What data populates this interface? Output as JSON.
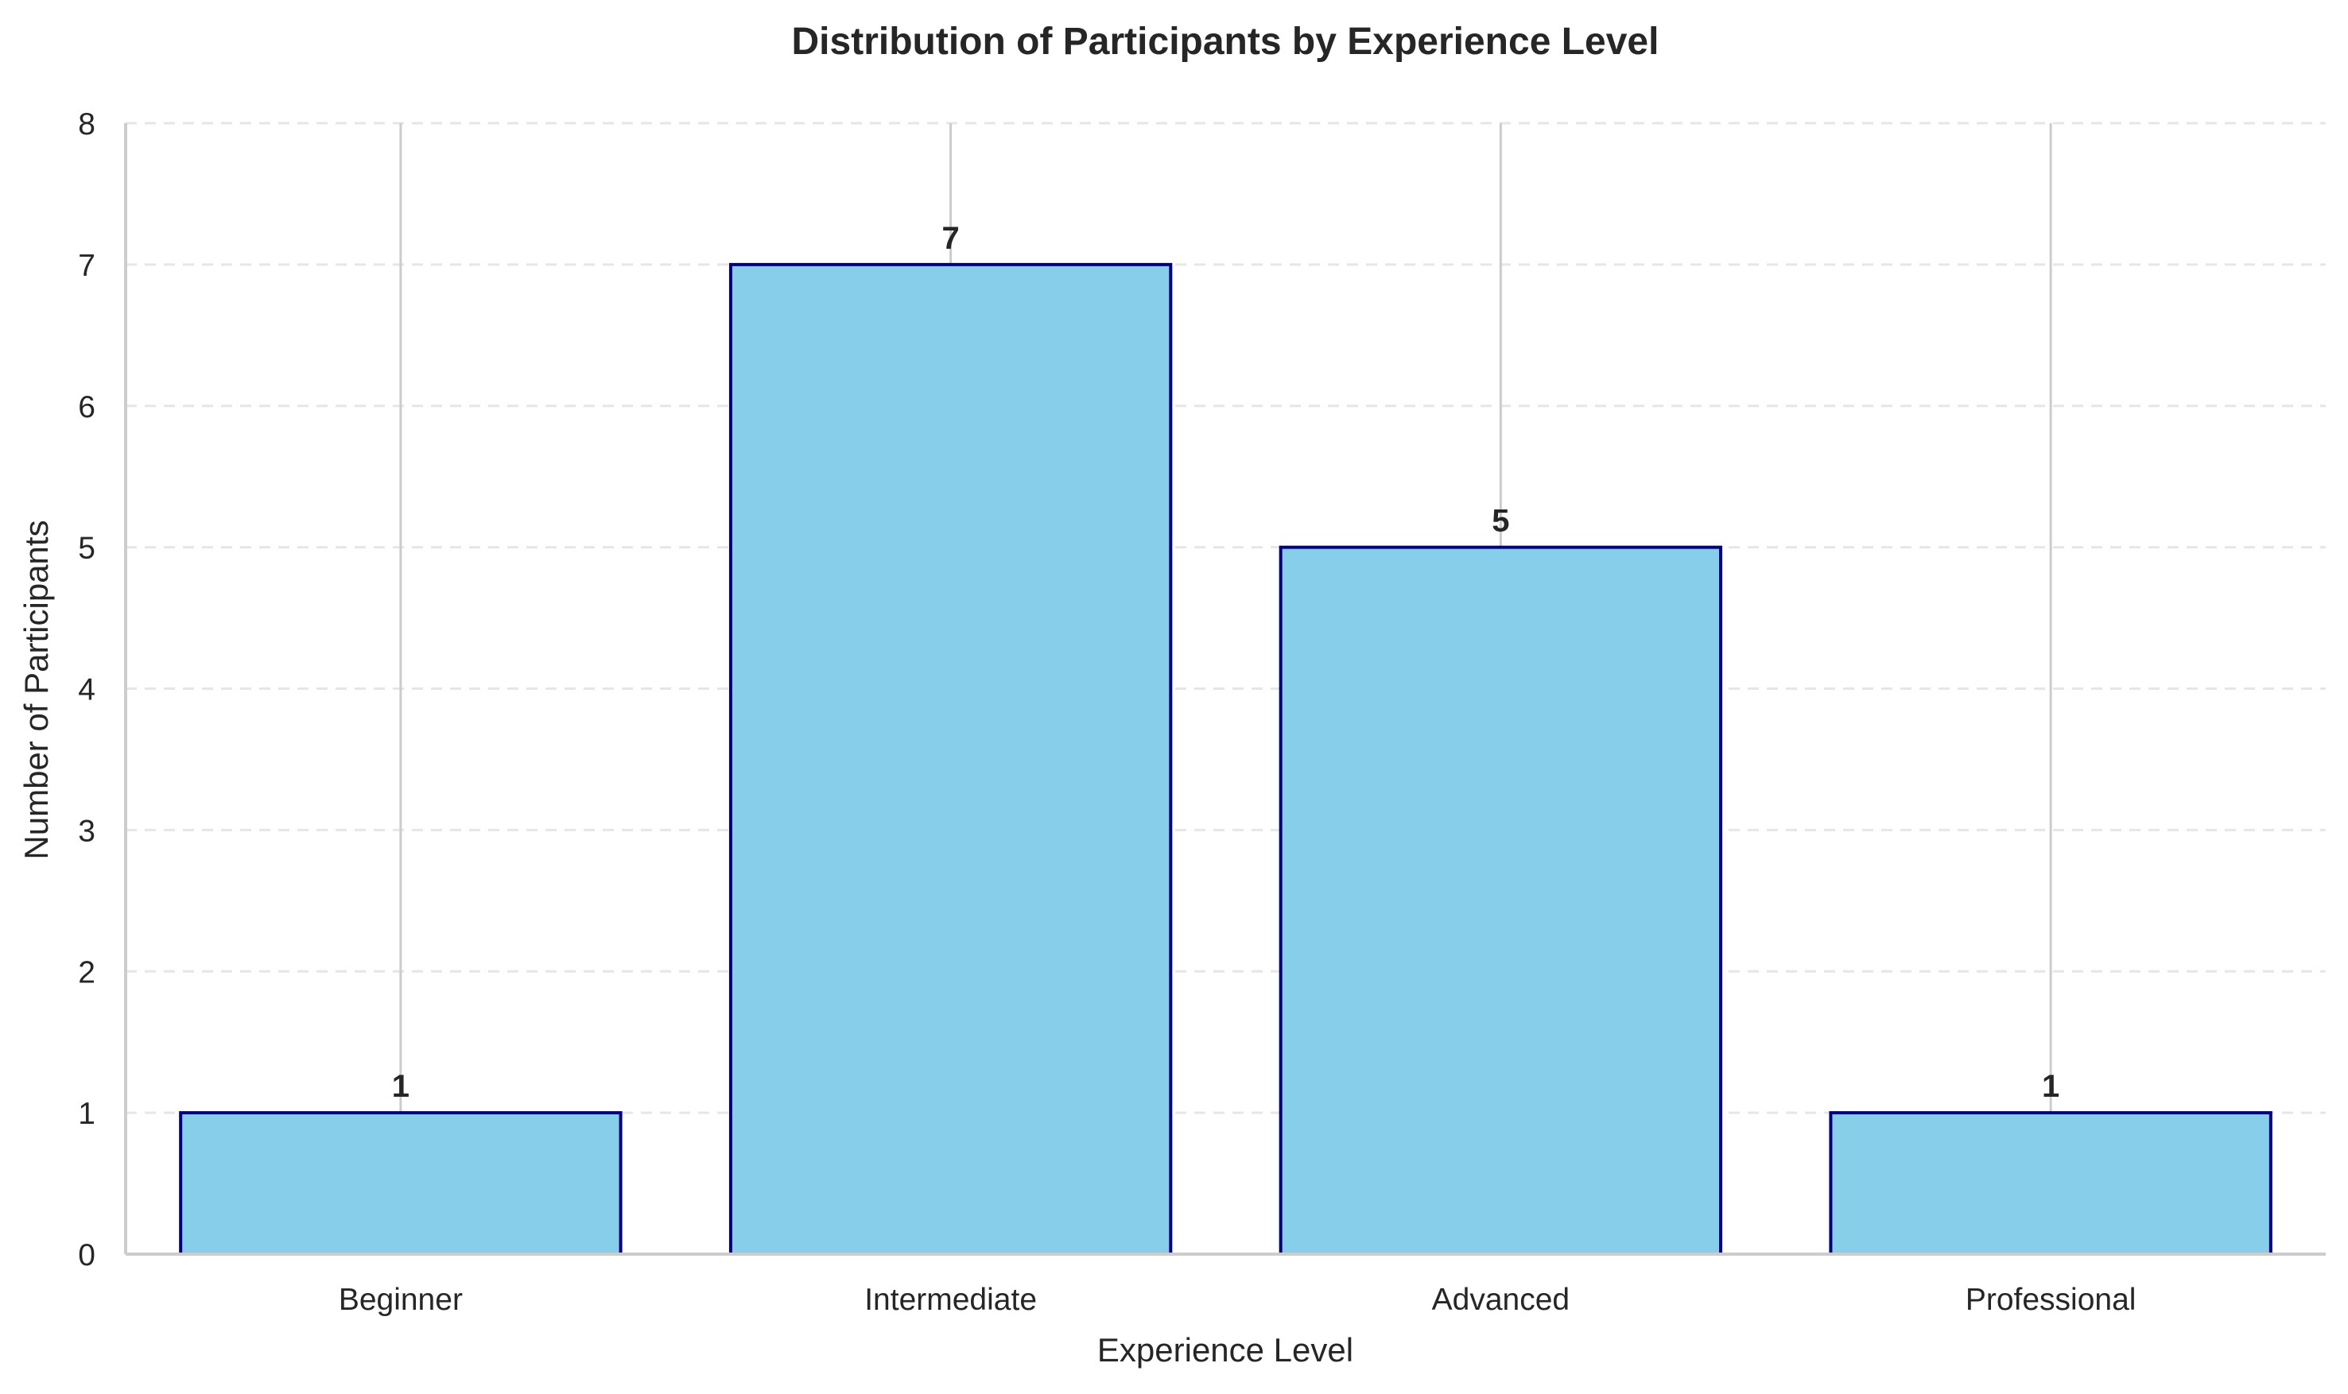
{
  "chart_data": {
    "type": "bar",
    "title": "Distribution of Participants by Experience Level",
    "xlabel": "Experience Level",
    "ylabel": "Number of Participants",
    "categories": [
      "Beginner",
      "Intermediate",
      "Advanced",
      "Professional"
    ],
    "values": [
      1,
      7,
      5,
      1
    ],
    "data_labels": [
      "1",
      "7",
      "5",
      "1"
    ],
    "ylim": [
      0,
      8
    ],
    "yticks": [
      0,
      1,
      2,
      3,
      4,
      5,
      6,
      7,
      8
    ],
    "ytick_labels": [
      "0",
      "1",
      "2",
      "3",
      "4",
      "5",
      "6",
      "7",
      "8"
    ],
    "grid": "horizontal dashed",
    "legend": "none",
    "colors": {
      "bar_fill": "#87CEEB",
      "bar_edge": "#000080",
      "grid": "#e6e6e6",
      "axis": "#cccccc",
      "text": "#262626"
    }
  }
}
